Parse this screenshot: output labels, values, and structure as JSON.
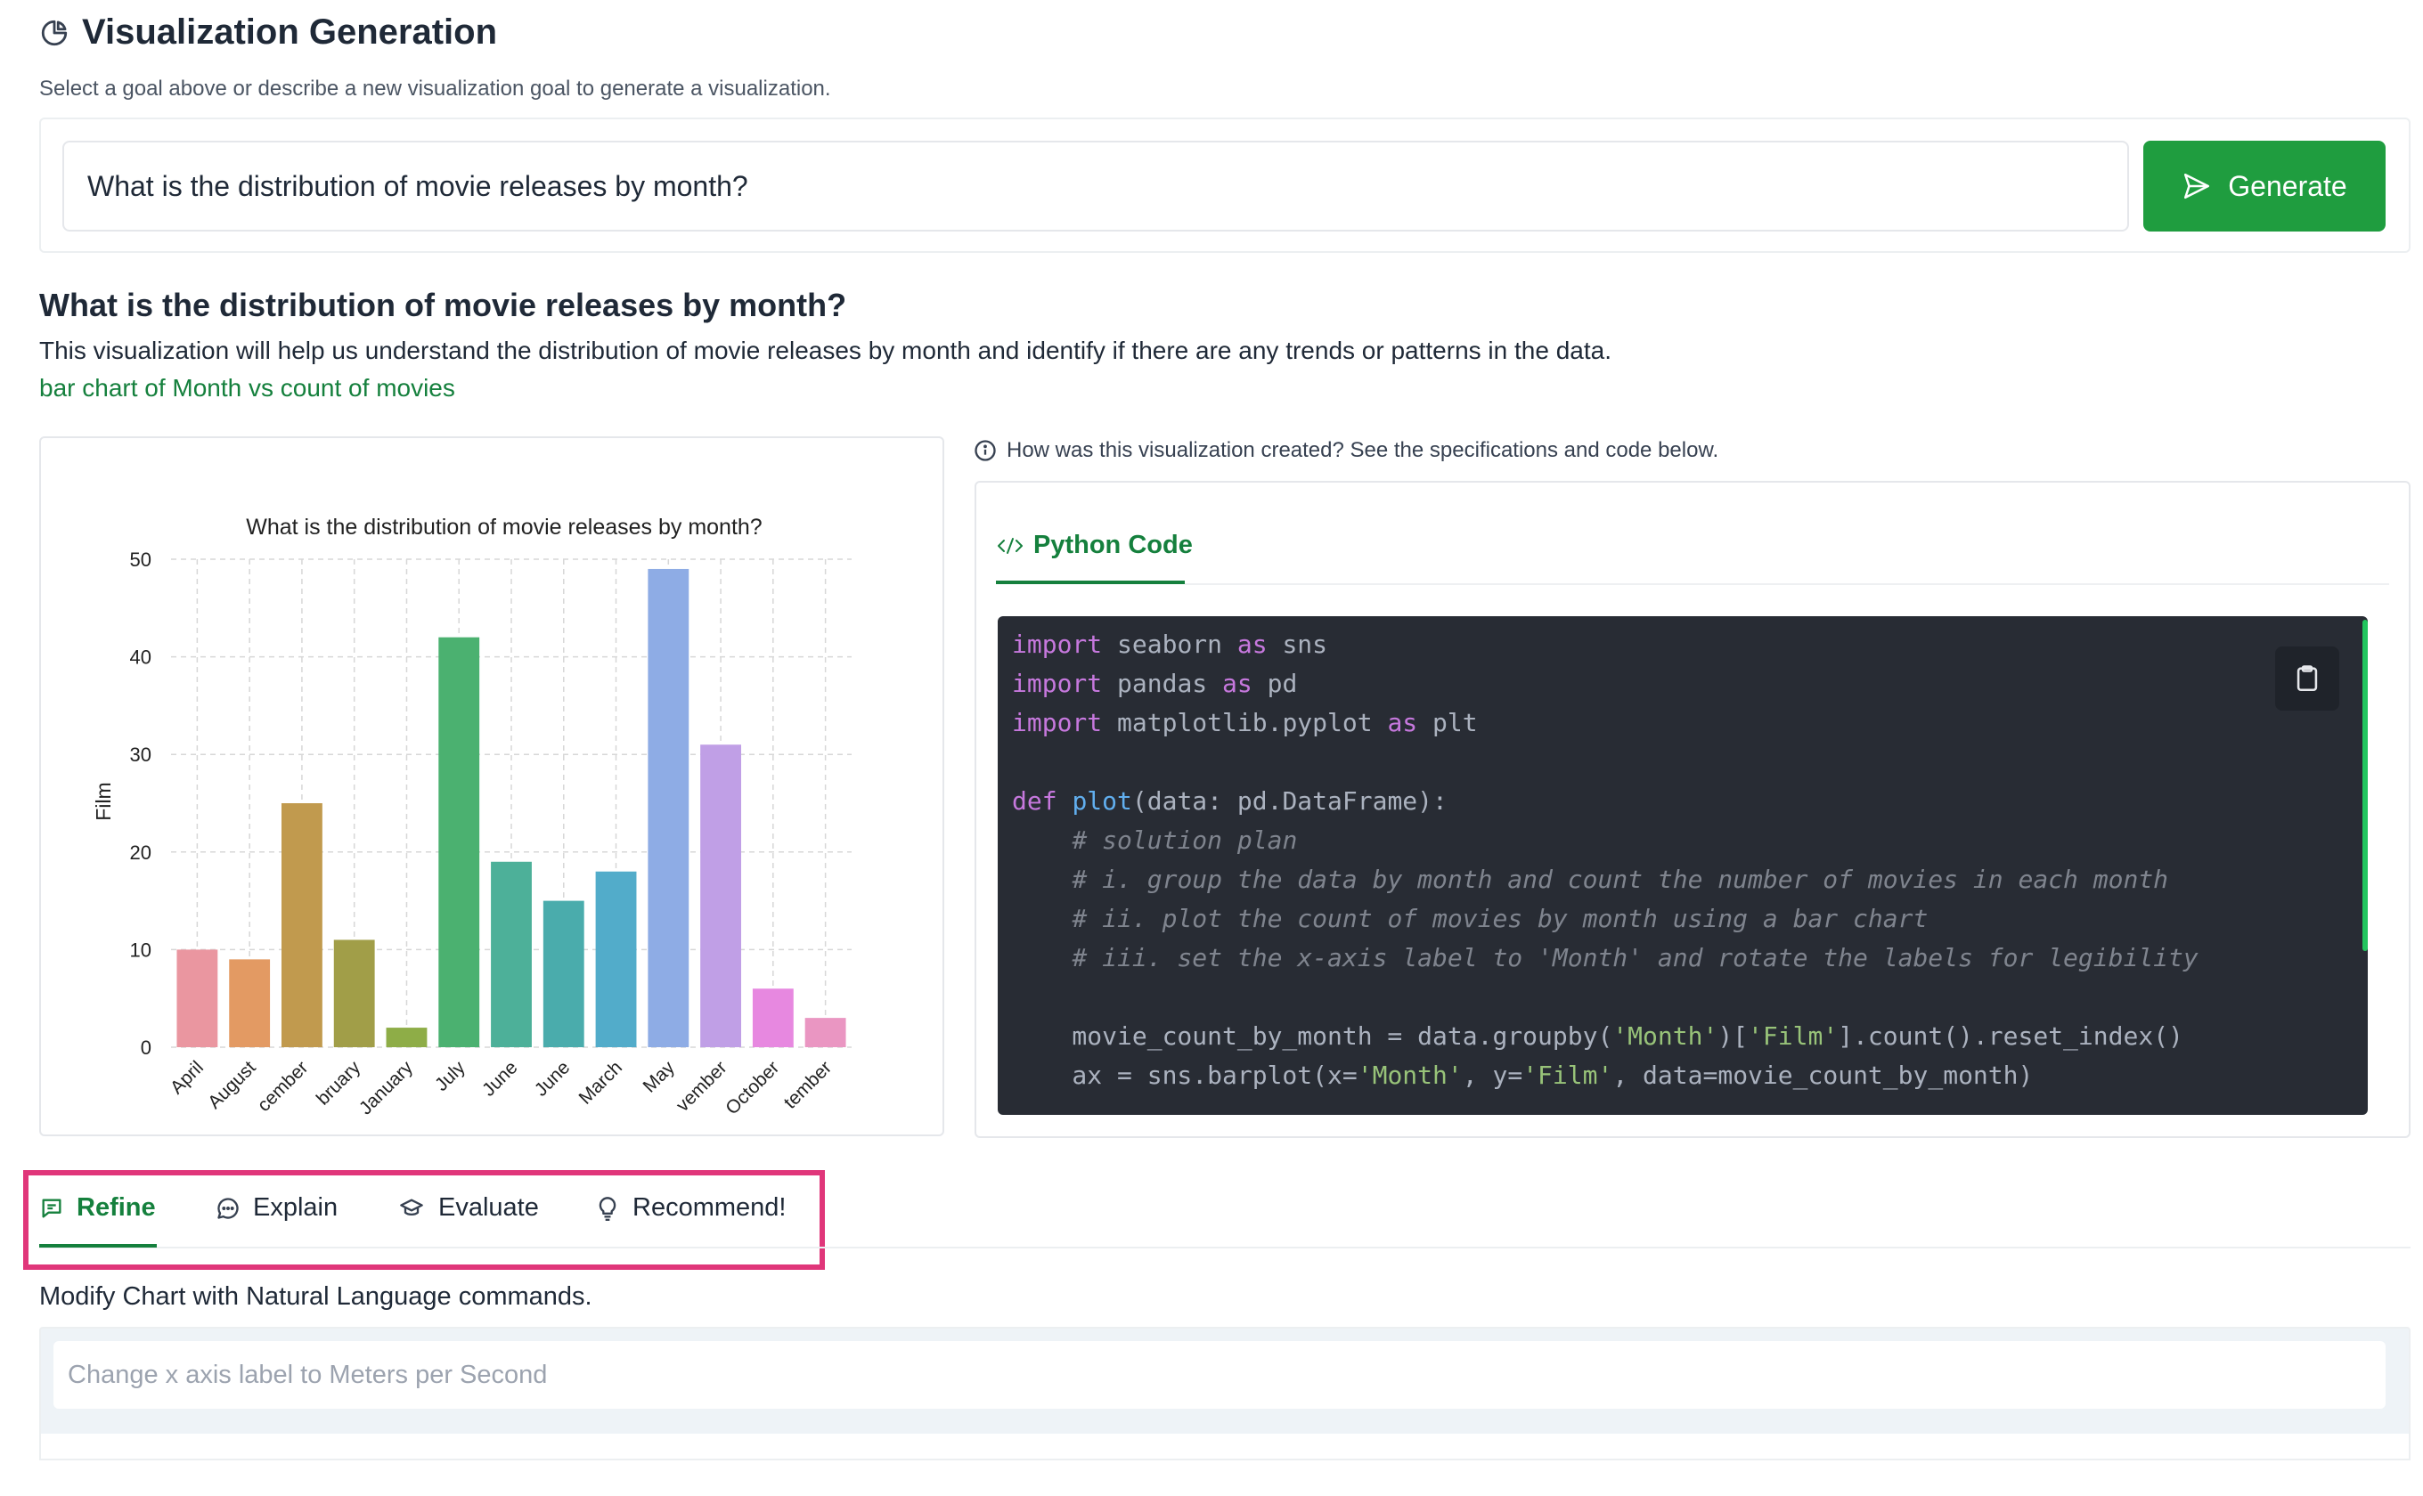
{
  "header": {
    "title": "Visualization Generation",
    "subtitle": "Select a goal above or describe a new visualization goal to generate a visualization."
  },
  "goal_input": {
    "value": "What is the distribution of movie releases by month?"
  },
  "generate_button": {
    "label": "Generate",
    "color": "#1f9d3f"
  },
  "goal": {
    "question": "What is the distribution of movie releases by month?",
    "rationale": "This visualization will help us understand the distribution of movie releases by month and identify if there are any trends or patterns in the data.",
    "spec": "bar chart of Month vs count of movies"
  },
  "info": {
    "text": "How was this visualization created? See the specifications and code below."
  },
  "code_tab": {
    "label": "Python Code"
  },
  "code_lines": {
    "l1": "import seaborn as sns",
    "l2": "import pandas as pd",
    "l3": "import matplotlib.pyplot as plt",
    "l4": "def plot(data: pd.DataFrame):",
    "l5": "# solution plan",
    "l6": "# i. group the data by month and count the number of movies in each month",
    "l7": "# ii. plot the count of movies by month using a bar chart",
    "l8": "# iii. set the x-axis label to 'Month' and rotate the labels for legibility",
    "l9": "movie_count_by_month = data.groupby('Month')['Film'].count().reset_index()",
    "l10": "ax = sns.barplot(x='Month', y='Film', data=movie_count_by_month)"
  },
  "tabs": {
    "refine": "Refine",
    "explain": "Explain",
    "evaluate": "Evaluate",
    "recommend": "Recommend!"
  },
  "refine": {
    "description": "Modify Chart with Natural Language commands.",
    "placeholder": "Change x axis label to Meters per Second"
  },
  "chart_data": {
    "type": "bar",
    "title": "What is the distribution of movie releases by month?",
    "xlabel": "",
    "ylabel": "Film",
    "ylim": [
      0,
      50
    ],
    "yticks": [
      0,
      10,
      20,
      30,
      40,
      50
    ],
    "grid": true,
    "categories": [
      "April",
      "August",
      "cember",
      "bruary",
      "January",
      "July",
      "June",
      "June",
      "March",
      "May",
      "vember",
      "October",
      "tember"
    ],
    "values": [
      10,
      9,
      25,
      11,
      2,
      42,
      19,
      15,
      18,
      49,
      31,
      6,
      3
    ],
    "colors": [
      "#ea96a0",
      "#e39a63",
      "#c19a4e",
      "#a19e48",
      "#8ead47",
      "#4bb170",
      "#4db099",
      "#4aacac",
      "#52acca",
      "#8eace5",
      "#c09fe6",
      "#e788e0",
      "#ea96c2"
    ]
  }
}
